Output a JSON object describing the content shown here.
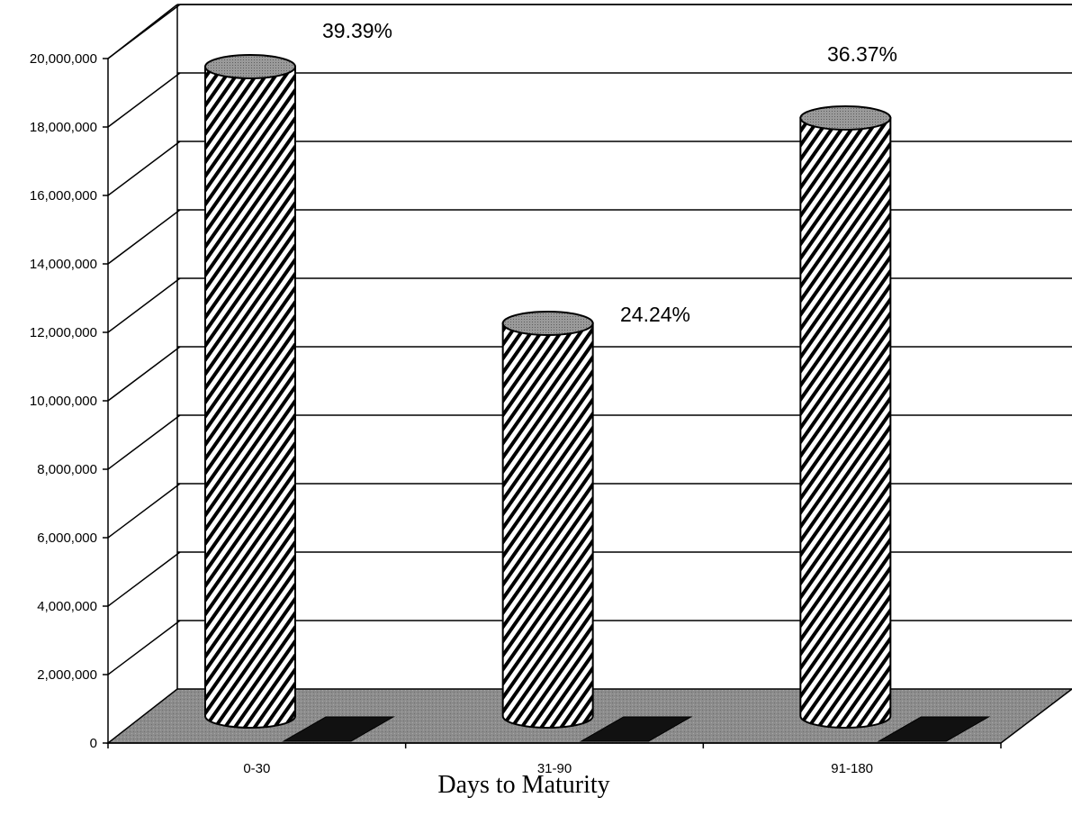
{
  "chart_data": {
    "type": "bar",
    "style": "3d-cylinder",
    "xlabel": "Days to Maturity",
    "ylabel": "",
    "ylim": [
      0,
      20000000
    ],
    "grid": true,
    "categories": [
      "0-30",
      "31-90",
      "91-180"
    ],
    "series": [
      {
        "values": [
          19500000,
          12000000,
          18000000
        ],
        "labels": [
          "39.39%",
          "24.24%",
          "36.37%"
        ]
      },
      {
        "values": [
          0,
          0,
          0
        ]
      }
    ],
    "y_ticks": [
      "0",
      "2,000,000",
      "4,000,000",
      "6,000,000",
      "8,000,000",
      "10,000,000",
      "12,000,000",
      "14,000,000",
      "16,000,000",
      "18,000,000",
      "20,000,000"
    ],
    "colors": {
      "floor": "#8c8c8c",
      "cap": "#a8a8a8",
      "hatch": "#000000",
      "marker": "#111111"
    }
  }
}
